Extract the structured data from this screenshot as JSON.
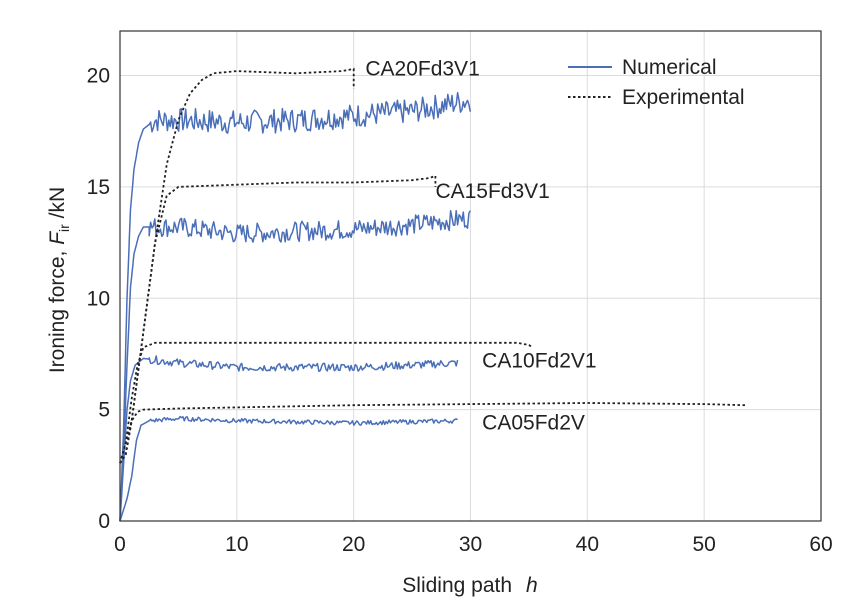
{
  "chart_data": {
    "type": "line",
    "xlabel": "Sliding path",
    "xlabel_symbol": "h",
    "ylabel_prefix": "Ironing force, ",
    "ylabel_symbol": "F",
    "ylabel_subscript": "ir",
    "ylabel_unit": " /kN",
    "xlim": [
      0,
      60
    ],
    "ylim": [
      0,
      22
    ],
    "xticks": [
      0,
      10,
      20,
      30,
      40,
      50,
      60
    ],
    "yticks": [
      0,
      5,
      10,
      15,
      20
    ],
    "grid": true,
    "legend": {
      "placement": "top-right",
      "entries": [
        {
          "name": "Numerical",
          "style": "solid",
          "color": "#4a6fb8"
        },
        {
          "name": "Experimental",
          "style": "dotted",
          "color": "#222222"
        }
      ]
    },
    "annotations": [
      {
        "text": "CA20Fd3V1",
        "x": 21,
        "y": 20
      },
      {
        "text": "CA15Fd3V1",
        "x": 27,
        "y": 14.5
      },
      {
        "text": "CA10Fd2V1",
        "x": 31,
        "y": 6.9
      },
      {
        "text": "CA05Fd2V",
        "x": 31,
        "y": 4.1
      }
    ],
    "series": [
      {
        "name": "Numerical",
        "case": "CA20Fd3V1",
        "style": "solid",
        "noise": 0.55,
        "points": [
          [
            0,
            0
          ],
          [
            0.3,
            4
          ],
          [
            0.6,
            10
          ],
          [
            0.9,
            14
          ],
          [
            1.2,
            15.8
          ],
          [
            1.6,
            17
          ],
          [
            2,
            17.6
          ],
          [
            3,
            18
          ],
          [
            5,
            18
          ],
          [
            10,
            17.9
          ],
          [
            15,
            18
          ],
          [
            20,
            18.2
          ],
          [
            25,
            18.4
          ],
          [
            30,
            18.9
          ]
        ]
      },
      {
        "name": "Numerical",
        "case": "CA15Fd3V1",
        "style": "solid",
        "noise": 0.45,
        "points": [
          [
            0,
            0
          ],
          [
            0.3,
            3
          ],
          [
            0.6,
            7
          ],
          [
            0.9,
            10.5
          ],
          [
            1.2,
            12
          ],
          [
            1.6,
            12.8
          ],
          [
            2,
            13.2
          ],
          [
            5,
            13.2
          ],
          [
            10,
            12.9
          ],
          [
            15,
            13
          ],
          [
            20,
            13.1
          ],
          [
            25,
            13.3
          ],
          [
            30,
            13.6
          ]
        ]
      },
      {
        "name": "Numerical",
        "case": "CA10Fd2V1",
        "style": "solid",
        "noise": 0.18,
        "points": [
          [
            0,
            0
          ],
          [
            0.3,
            2.5
          ],
          [
            0.6,
            5
          ],
          [
            0.9,
            6.3
          ],
          [
            1.3,
            7
          ],
          [
            2,
            7.3
          ],
          [
            5,
            7.1
          ],
          [
            10,
            6.9
          ],
          [
            15,
            6.9
          ],
          [
            20,
            6.9
          ],
          [
            25,
            7
          ],
          [
            29,
            7.1
          ]
        ]
      },
      {
        "name": "Numerical",
        "case": "CA05Fd2V",
        "style": "solid",
        "noise": 0.1,
        "points": [
          [
            0,
            0
          ],
          [
            0.3,
            0.5
          ],
          [
            0.6,
            1
          ],
          [
            1,
            2
          ],
          [
            1.4,
            3.6
          ],
          [
            1.8,
            4.3
          ],
          [
            2.5,
            4.5
          ],
          [
            5,
            4.6
          ],
          [
            10,
            4.5
          ],
          [
            20,
            4.4
          ],
          [
            29,
            4.5
          ]
        ]
      },
      {
        "name": "Experimental",
        "case": "CA20Fd3V1",
        "style": "dotted",
        "points": [
          [
            0,
            2.6
          ],
          [
            0.5,
            3
          ],
          [
            1,
            4.5
          ],
          [
            2,
            8.5
          ],
          [
            3,
            12.5
          ],
          [
            4,
            16
          ],
          [
            5,
            18
          ],
          [
            6,
            19.2
          ],
          [
            7,
            19.8
          ],
          [
            8,
            20.1
          ],
          [
            10,
            20.2
          ],
          [
            15,
            20.1
          ],
          [
            19,
            20.2
          ],
          [
            20,
            20.3
          ],
          [
            20,
            19.4
          ]
        ]
      },
      {
        "name": "Experimental",
        "case": "CA15Fd3V1",
        "style": "dotted",
        "points": [
          [
            0,
            2.6
          ],
          [
            0.5,
            3
          ],
          [
            1,
            4.5
          ],
          [
            2,
            8.5
          ],
          [
            3,
            12.5
          ],
          [
            4,
            14.6
          ],
          [
            5,
            15
          ],
          [
            10,
            15.1
          ],
          [
            15,
            15.2
          ],
          [
            20,
            15.2
          ],
          [
            25,
            15.3
          ],
          [
            26.5,
            15.4
          ],
          [
            27,
            15.5
          ],
          [
            27,
            15
          ]
        ]
      },
      {
        "name": "Experimental",
        "case": "CA10Fd2V1",
        "style": "dotted",
        "points": [
          [
            0,
            2.6
          ],
          [
            0.5,
            3.5
          ],
          [
            1,
            5.5
          ],
          [
            1.5,
            7
          ],
          [
            2,
            7.8
          ],
          [
            3,
            8
          ],
          [
            10,
            8
          ],
          [
            20,
            8
          ],
          [
            30,
            8
          ],
          [
            34,
            8
          ],
          [
            35,
            7.9
          ],
          [
            35.3,
            7.8
          ]
        ]
      },
      {
        "name": "Experimental",
        "case": "CA05Fd2V",
        "style": "dotted",
        "points": [
          [
            0,
            2.6
          ],
          [
            0.5,
            3.5
          ],
          [
            1,
            4.5
          ],
          [
            1.5,
            4.9
          ],
          [
            2,
            5
          ],
          [
            5,
            5.05
          ],
          [
            10,
            5.1
          ],
          [
            20,
            5.2
          ],
          [
            30,
            5.25
          ],
          [
            40,
            5.3
          ],
          [
            50,
            5.25
          ],
          [
            53.5,
            5.2
          ]
        ]
      }
    ]
  }
}
